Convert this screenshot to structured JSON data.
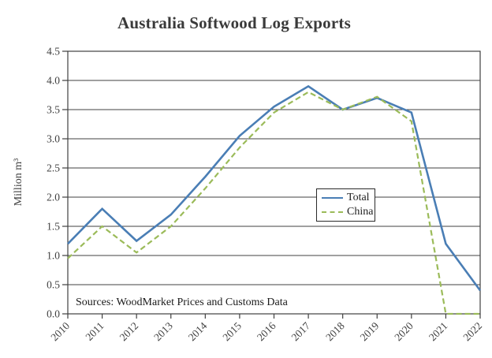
{
  "chart_data": {
    "type": "line",
    "title": "Australia Softwood Log Exports",
    "ylabel": "Million m³",
    "categories": [
      "2010",
      "2011",
      "2012",
      "2013",
      "2014",
      "2015",
      "2016",
      "2017",
      "2018",
      "2019",
      "2020",
      "2021",
      "2022"
    ],
    "series": [
      {
        "name": "Total",
        "color": "#4a7eb5",
        "style": "solid",
        "values": [
          1.2,
          1.8,
          1.25,
          1.7,
          2.35,
          3.05,
          3.55,
          3.9,
          3.5,
          3.7,
          3.45,
          1.2,
          0.4
        ]
      },
      {
        "name": "China",
        "color": "#9bbb59",
        "style": "dashed",
        "values": [
          0.95,
          1.5,
          1.05,
          1.5,
          2.15,
          2.85,
          3.45,
          3.8,
          3.5,
          3.72,
          3.3,
          0.0,
          0.0
        ]
      }
    ],
    "ylim": [
      0,
      4.5
    ],
    "ytick_step": 0.5,
    "ytick_labels": [
      "0.0",
      "0.5",
      "1.0",
      "1.5",
      "2.0",
      "2.5",
      "3.0",
      "3.5",
      "4.0",
      "4.5"
    ],
    "grid": true,
    "legend_position": "inside-right",
    "source_note": "Sources: WoodMarket Prices and Customs Data",
    "axis_color": "#404040",
    "tick_label_color": "#404040"
  }
}
